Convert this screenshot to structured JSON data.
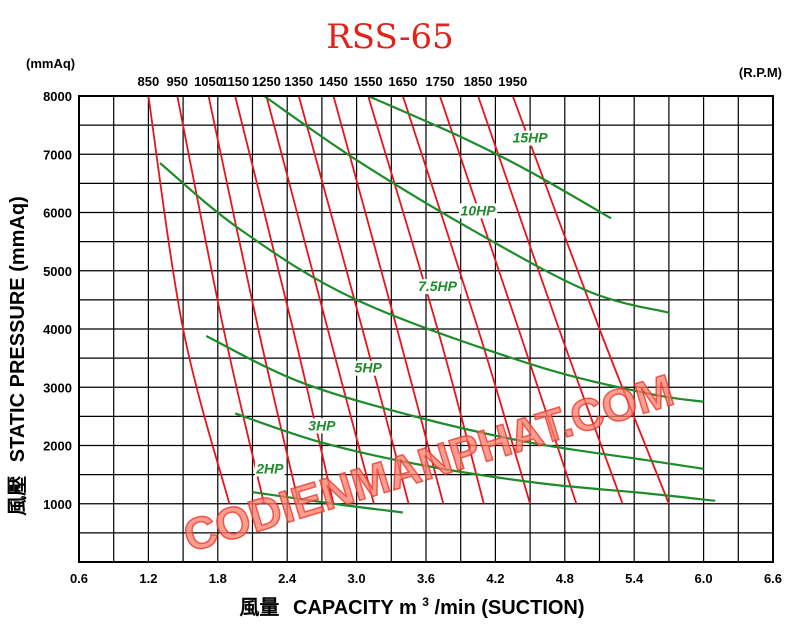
{
  "chart_data": {
    "type": "line",
    "title": "RSS-65",
    "y_unit_label": "(mmAq)",
    "rpm_unit_label": "(R.P.M)",
    "ylabel_cjk": "風壓",
    "ylabel": "STATIC PRESSURE (mmAq)",
    "xlabel_cjk": "風量",
    "xlabel_pre": "CAPACITY m",
    "xlabel_sup": "3",
    "xlabel_post": "/min (SUCTION)",
    "watermark": "CODIENMANPHAT.COM",
    "xlim": [
      0.6,
      6.6
    ],
    "ylim": [
      0,
      8000
    ],
    "x_ticks": [
      "0.6",
      "1.2",
      "1.8",
      "2.4",
      "3.0",
      "3.6",
      "4.2",
      "4.8",
      "5.4",
      "6.0",
      "6.6"
    ],
    "y_ticks": [
      "1000",
      "2000",
      "3000",
      "4000",
      "5000",
      "6000",
      "7000",
      "8000"
    ],
    "grid": true,
    "rpm_curves": [
      {
        "label": "850",
        "points": [
          [
            1.2,
            8000
          ],
          [
            1.5,
            4000
          ],
          [
            1.9,
            1000
          ]
        ]
      },
      {
        "label": "950",
        "points": [
          [
            1.45,
            8000
          ],
          [
            1.85,
            4000
          ],
          [
            2.2,
            1000
          ]
        ]
      },
      {
        "label": "1050",
        "points": [
          [
            1.72,
            8000
          ],
          [
            2.15,
            4000
          ],
          [
            2.5,
            1000
          ]
        ]
      },
      {
        "label": "1150",
        "points": [
          [
            1.95,
            8000
          ],
          [
            2.45,
            4000
          ],
          [
            2.8,
            1000
          ]
        ]
      },
      {
        "label": "1250",
        "points": [
          [
            2.22,
            8000
          ],
          [
            2.75,
            4000
          ],
          [
            3.15,
            1000
          ]
        ]
      },
      {
        "label": "1350",
        "points": [
          [
            2.5,
            8000
          ],
          [
            3.05,
            4000
          ],
          [
            3.45,
            1000
          ]
        ]
      },
      {
        "label": "1450",
        "points": [
          [
            2.8,
            8000
          ],
          [
            3.35,
            4000
          ],
          [
            3.75,
            1000
          ]
        ]
      },
      {
        "label": "1550",
        "points": [
          [
            3.1,
            8000
          ],
          [
            3.7,
            4000
          ],
          [
            4.1,
            1000
          ]
        ]
      },
      {
        "label": "1650",
        "points": [
          [
            3.4,
            8000
          ],
          [
            4.05,
            4000
          ],
          [
            4.5,
            1000
          ]
        ]
      },
      {
        "label": "1750",
        "points": [
          [
            3.72,
            8000
          ],
          [
            4.4,
            4000
          ],
          [
            4.9,
            1000
          ]
        ]
      },
      {
        "label": "1850",
        "points": [
          [
            4.05,
            8000
          ],
          [
            4.75,
            4000
          ],
          [
            5.3,
            1000
          ]
        ]
      },
      {
        "label": "1950",
        "points": [
          [
            4.35,
            8000
          ],
          [
            5.1,
            4000
          ],
          [
            5.7,
            1000
          ]
        ]
      }
    ],
    "hp_curves": [
      {
        "label": "15HP",
        "label_at": [
          4.5,
          7200
        ],
        "points": [
          [
            3.1,
            8000
          ],
          [
            3.9,
            7300
          ],
          [
            4.5,
            6700
          ],
          [
            5.2,
            5900
          ]
        ]
      },
      {
        "label": "10HP",
        "label_at": [
          4.05,
          5950
        ],
        "points": [
          [
            2.2,
            8000
          ],
          [
            3.0,
            6900
          ],
          [
            4.0,
            5700
          ],
          [
            5.0,
            4650
          ],
          [
            5.7,
            4280
          ]
        ]
      },
      {
        "label": "7.5HP",
        "label_at": [
          3.7,
          4650
        ],
        "points": [
          [
            1.3,
            6850
          ],
          [
            2.0,
            5700
          ],
          [
            3.0,
            4500
          ],
          [
            4.5,
            3400
          ],
          [
            5.5,
            2900
          ],
          [
            6.0,
            2750
          ]
        ]
      },
      {
        "label": "5HP",
        "label_at": [
          3.1,
          3250
        ],
        "points": [
          [
            1.7,
            3880
          ],
          [
            2.5,
            3100
          ],
          [
            3.5,
            2500
          ],
          [
            4.5,
            2050
          ],
          [
            5.5,
            1750
          ],
          [
            6.0,
            1600
          ]
        ]
      },
      {
        "label": "3HP",
        "label_at": [
          2.7,
          2260
        ],
        "points": [
          [
            1.95,
            2550
          ],
          [
            2.7,
            2050
          ],
          [
            3.6,
            1650
          ],
          [
            4.6,
            1350
          ],
          [
            5.5,
            1180
          ],
          [
            6.1,
            1050
          ]
        ]
      },
      {
        "label": "2HP",
        "label_at": [
          2.25,
          1520
        ],
        "points": [
          [
            2.1,
            1200
          ],
          [
            2.8,
            1000
          ],
          [
            3.4,
            850
          ]
        ]
      }
    ]
  }
}
